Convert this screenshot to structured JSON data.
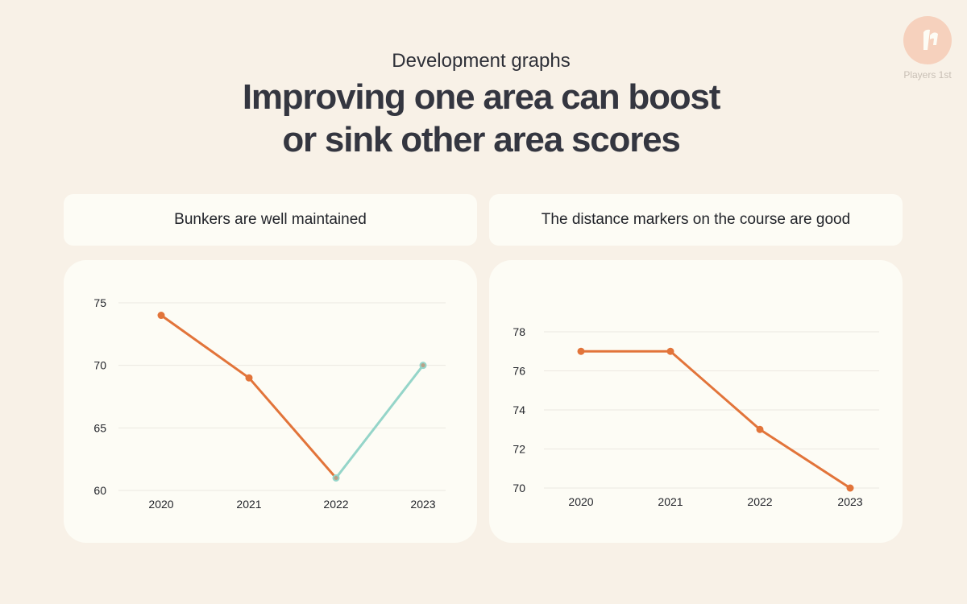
{
  "brand": {
    "name": "Players 1st",
    "logo_icon": "players-1st-logo-icon",
    "logo_color": "#f6d1bd"
  },
  "header": {
    "subtitle": "Development graphs",
    "title_line1": "Improving one area can boost",
    "title_line2": "or sink other area scores"
  },
  "colors": {
    "line": "#e2743a",
    "highlight": "#95d5c9",
    "grid": "#ece9e1",
    "card": "#fdfcf5",
    "background": "#f8f1e7"
  },
  "chart_data": [
    {
      "type": "line",
      "title": "Bunkers are well maintained",
      "categories": [
        "2020",
        "2021",
        "2022",
        "2023"
      ],
      "values": [
        74,
        69,
        61,
        70
      ],
      "highlight_segment": {
        "from": "2022",
        "to": "2023"
      },
      "yticks": [
        60,
        65,
        70,
        75
      ],
      "ylim": [
        60,
        75
      ],
      "grid": true,
      "legend": "none"
    },
    {
      "type": "line",
      "title": "The distance markers on the course are good",
      "categories": [
        "2020",
        "2021",
        "2022",
        "2023"
      ],
      "values": [
        77,
        77,
        73,
        70
      ],
      "yticks": [
        70,
        72,
        74,
        76,
        78
      ],
      "ylim": [
        70,
        78
      ],
      "grid": true,
      "legend": "none"
    }
  ]
}
